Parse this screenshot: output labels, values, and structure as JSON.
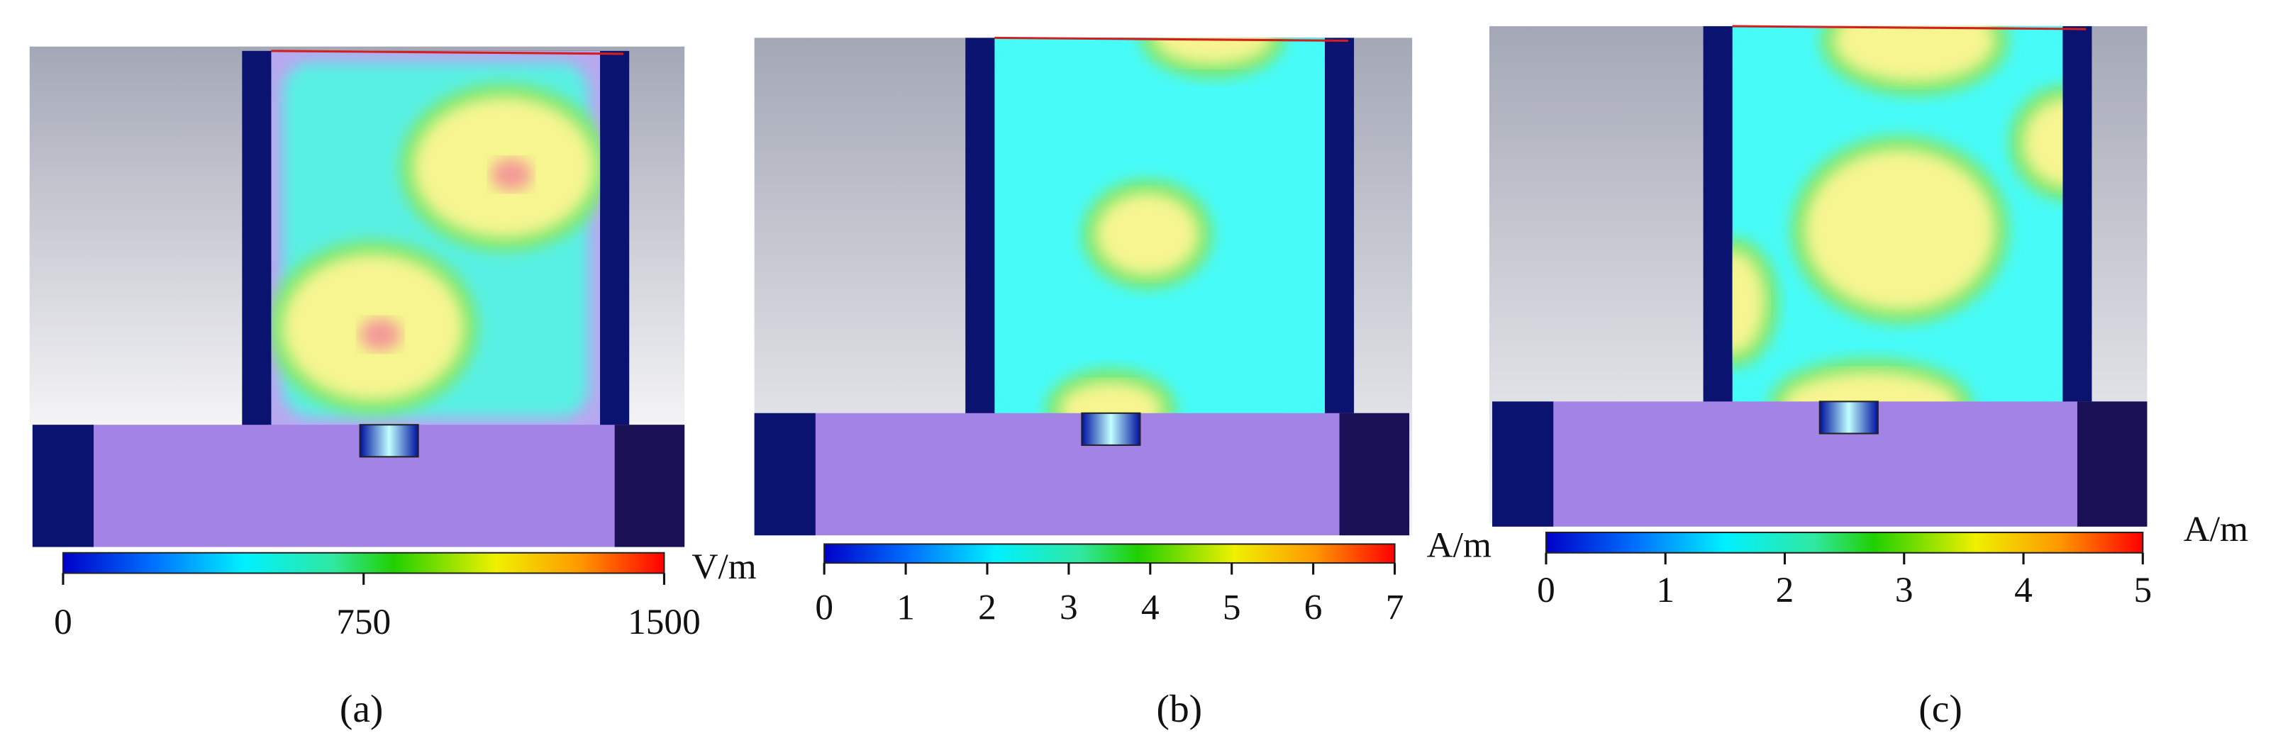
{
  "panels": [
    {
      "label": "(a)",
      "unit": "V/m",
      "range": [
        0,
        1500
      ],
      "ticks": [
        0,
        750,
        1500
      ]
    },
    {
      "label": "(b)",
      "unit": "A/m",
      "range": [
        0,
        7
      ],
      "ticks": [
        0,
        1,
        2,
        3,
        4,
        5,
        6,
        7
      ]
    },
    {
      "label": "(c)",
      "unit": "A/m",
      "range": [
        0,
        5
      ],
      "ticks": [
        0,
        1,
        2,
        3,
        4,
        5
      ]
    }
  ]
}
